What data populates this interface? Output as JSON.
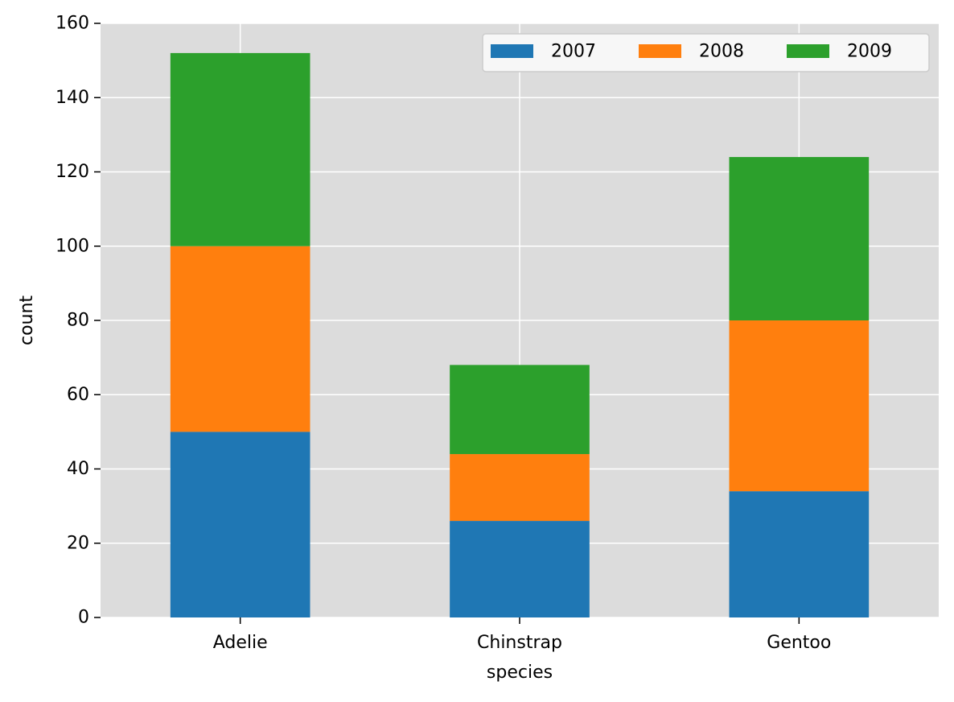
{
  "chart_data": {
    "type": "bar",
    "stacked": true,
    "categories": [
      "Adelie",
      "Chinstrap",
      "Gentoo"
    ],
    "series": [
      {
        "name": "2007",
        "values": [
          50,
          26,
          34
        ],
        "color": "#1f77b4"
      },
      {
        "name": "2008",
        "values": [
          50,
          18,
          46
        ],
        "color": "#ff7f0e"
      },
      {
        "name": "2009",
        "values": [
          52,
          24,
          44
        ],
        "color": "#2ca02c"
      }
    ],
    "title": "",
    "xlabel": "species",
    "ylabel": "count",
    "ylim": [
      0,
      160
    ],
    "yticks": [
      0,
      20,
      40,
      60,
      80,
      100,
      120,
      140,
      160
    ],
    "grid": true,
    "background_color": "#dcdcdc",
    "grid_color": "#ffffff",
    "legend": {
      "placement": "top-right",
      "columns": 3
    }
  }
}
